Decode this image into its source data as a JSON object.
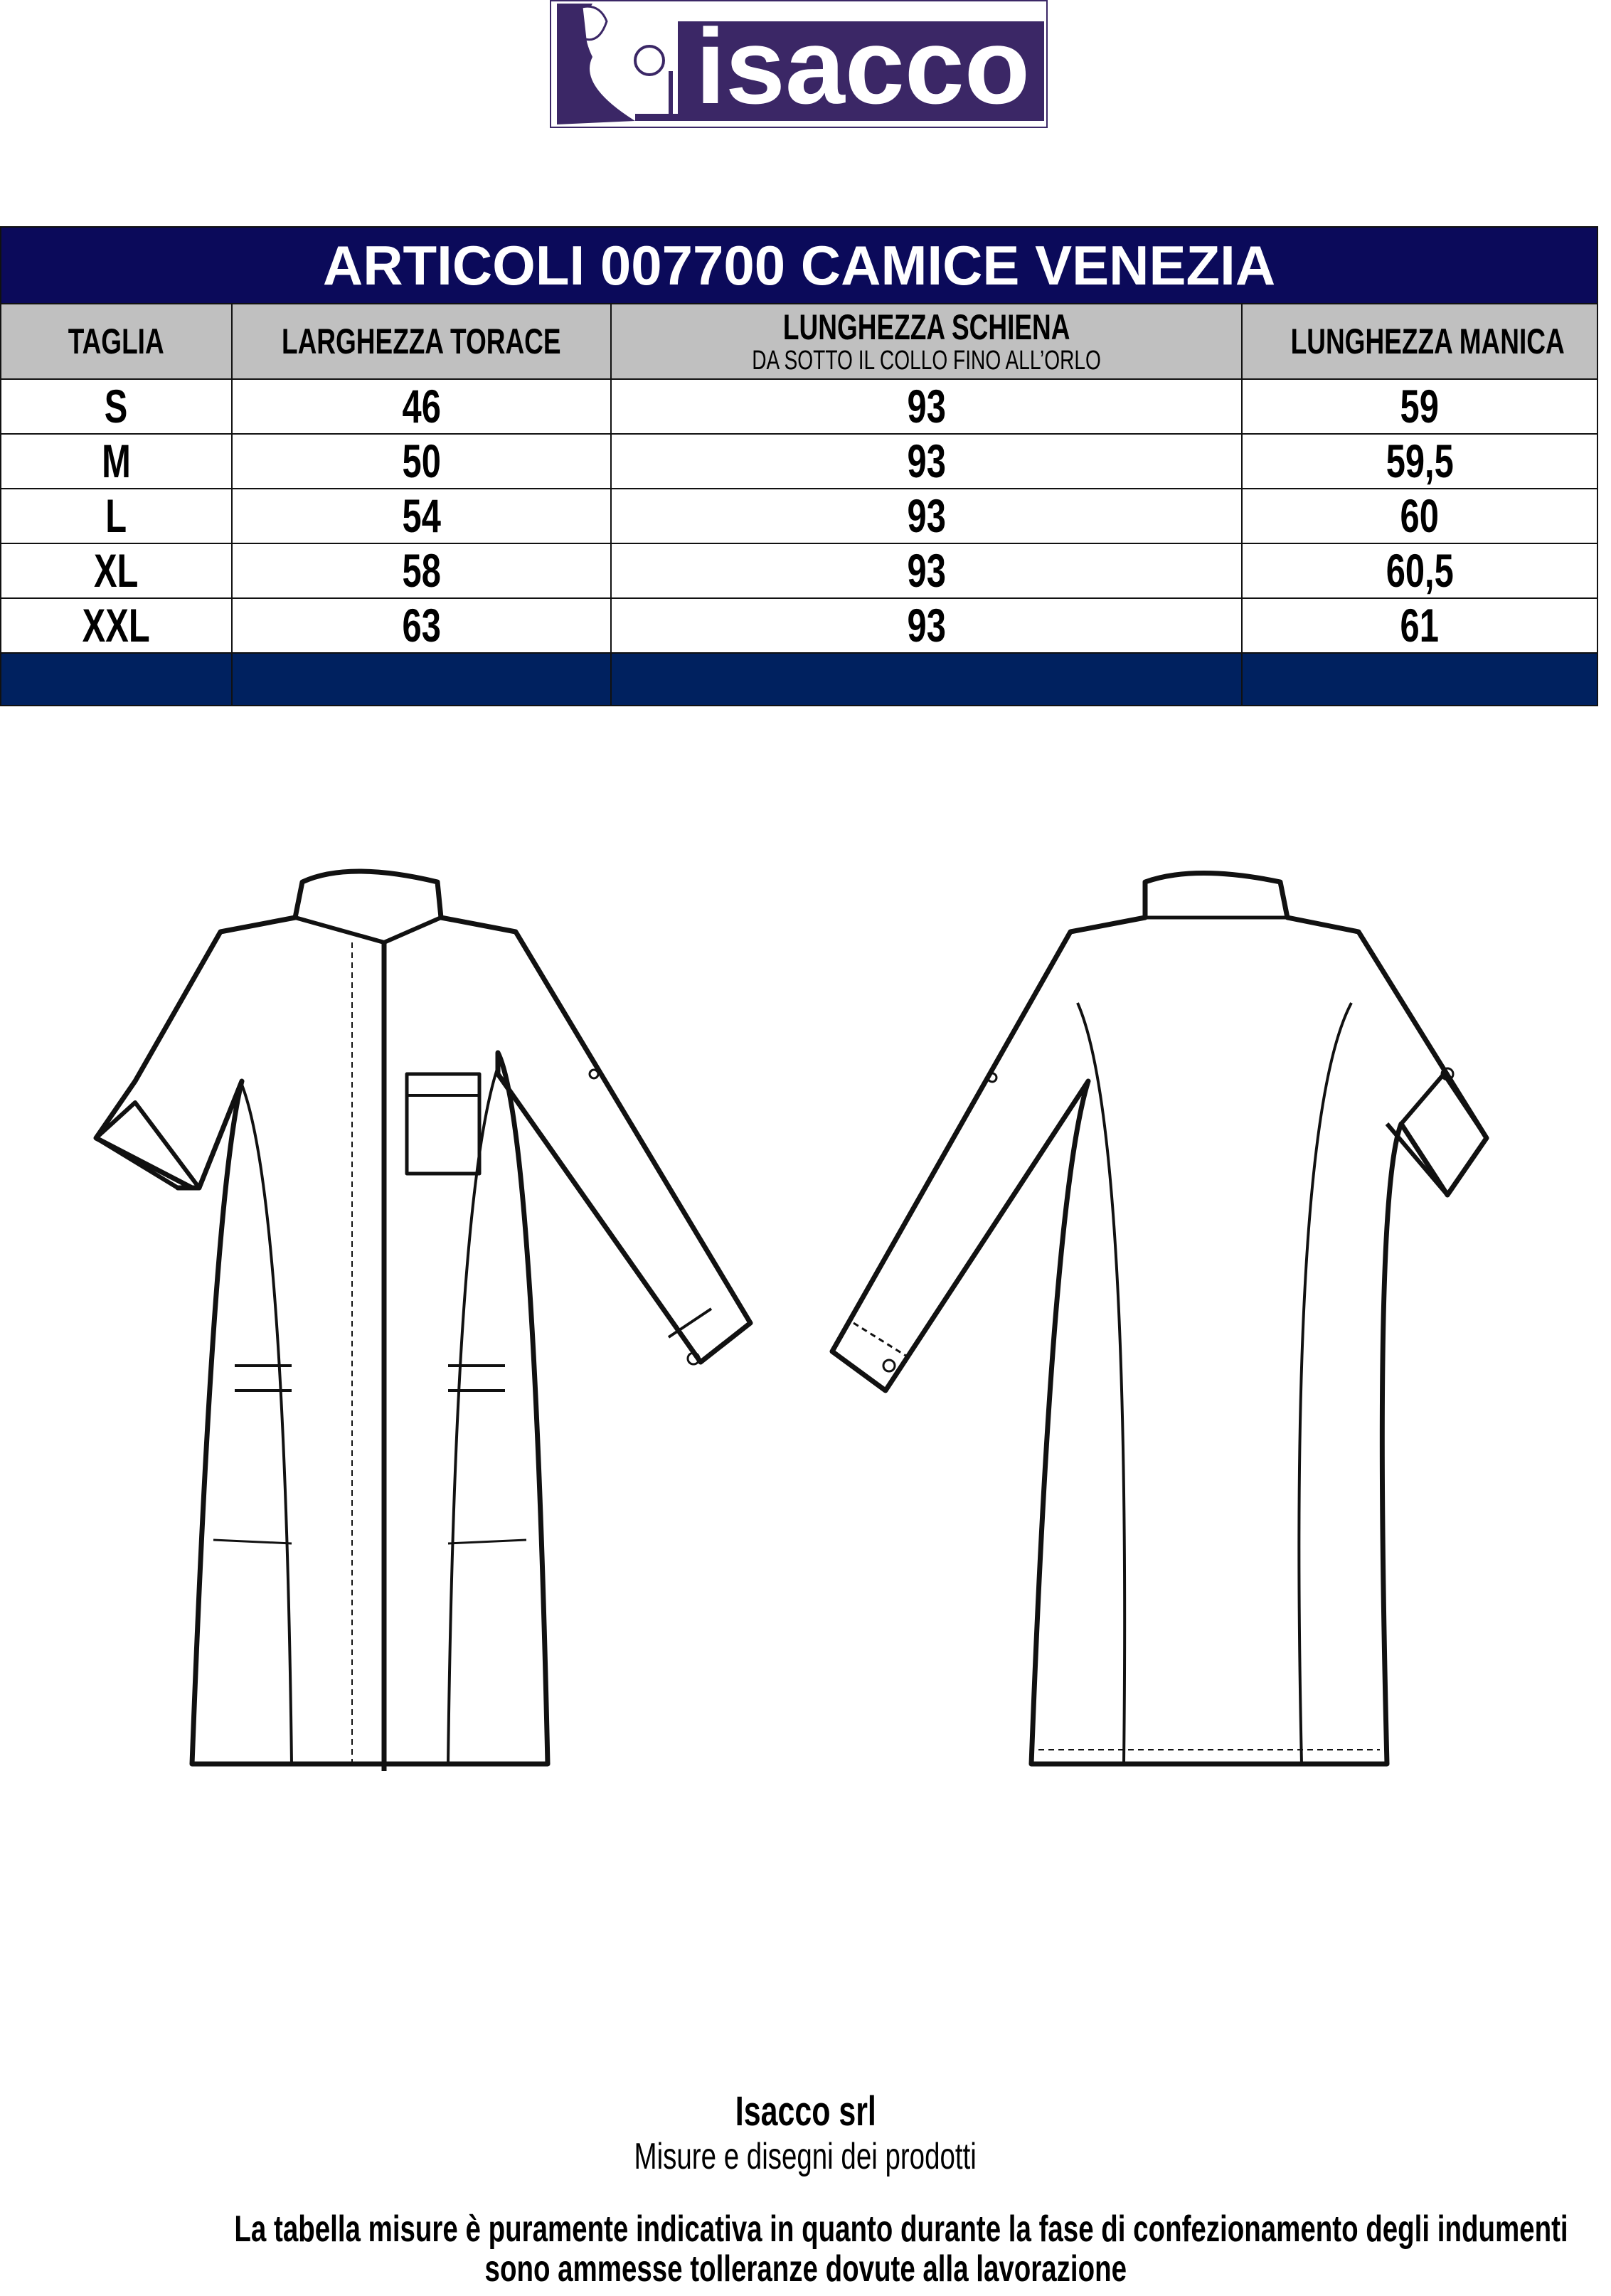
{
  "logo": {
    "text": "isacco",
    "color": "#3b2766"
  },
  "table": {
    "title": "ARTICOLI 007700 CAMICE VENEZIA",
    "headers": [
      {
        "main": "TAGLIA",
        "sub": ""
      },
      {
        "main": "LARGHEZZA TORACE",
        "sub": ""
      },
      {
        "main": "LUNGHEZZA SCHIENA",
        "sub": "DA SOTTO IL COLLO FINO ALL’ORLO"
      },
      {
        "main": "LUNGHEZZA MANICA",
        "sub": ""
      }
    ],
    "rows": [
      [
        "S",
        "46",
        "93",
        "59"
      ],
      [
        "M",
        "50",
        "93",
        "59,5"
      ],
      [
        "L",
        "54",
        "93",
        "60"
      ],
      [
        "XL",
        "58",
        "93",
        "60,5"
      ],
      [
        "XXL",
        "63",
        "93",
        "61"
      ]
    ],
    "colors": {
      "title_bg": "#0b0a5a",
      "header_bg": "#c0c0c0",
      "footer_bg": "#00215f"
    }
  },
  "footer": {
    "company": "Isacco srl",
    "subtitle": "Misure e disegni dei prodotti",
    "note_line1": "La tabella misure è puramente indicativa in quanto durante la fase di confezionamento degli indumenti",
    "note_line2": "sono ammesse tolleranze dovute alla lavorazione"
  }
}
